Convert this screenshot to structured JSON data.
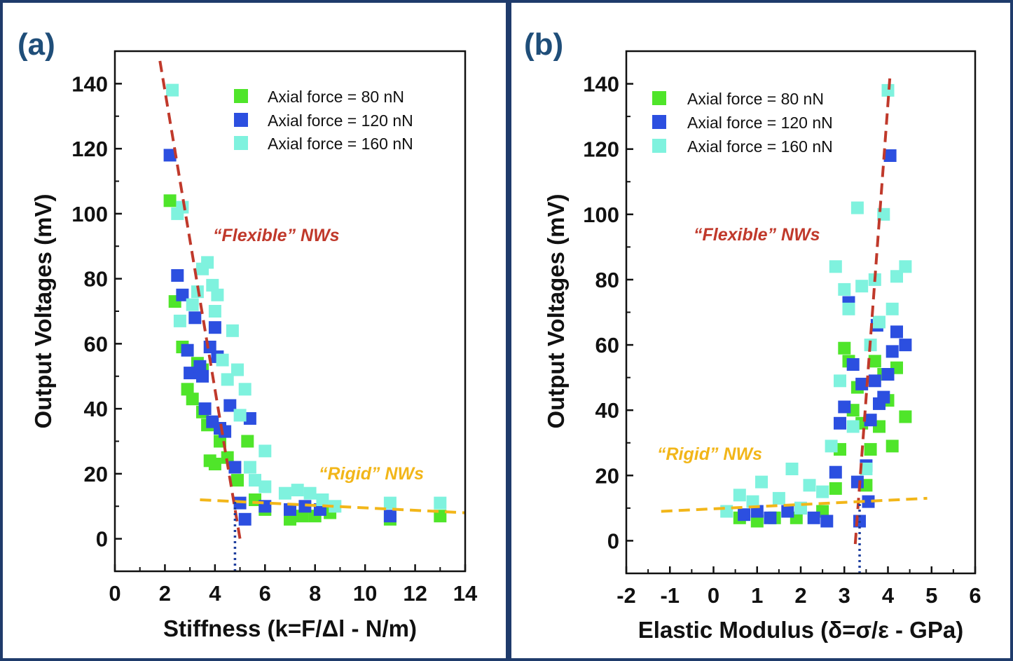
{
  "chart_data": [
    {
      "type": "scatter",
      "panel_label": "(a)",
      "xlabel": "Stiffness (k=F/Δl - N/m)",
      "ylabel": "Output Voltages (mV)",
      "xlim": [
        0,
        14
      ],
      "ylim": [
        -10,
        150
      ],
      "xticks": [
        "0",
        "2",
        "4",
        "6",
        "8",
        "10",
        "12",
        "14"
      ],
      "yticks": [
        "0",
        "20",
        "40",
        "60",
        "80",
        "100",
        "120",
        "140"
      ],
      "legend_position": "top-right",
      "grid": false,
      "series": [
        {
          "name": "Axial force = 80 nN",
          "color": "#4fe52a",
          "points": [
            [
              2.2,
              104
            ],
            [
              2.4,
              73
            ],
            [
              2.7,
              59
            ],
            [
              2.9,
              46
            ],
            [
              3.1,
              43
            ],
            [
              3.3,
              54
            ],
            [
              3.5,
              52
            ],
            [
              3.5,
              39
            ],
            [
              3.7,
              35
            ],
            [
              3.8,
              24
            ],
            [
              4.0,
              23
            ],
            [
              4.2,
              30
            ],
            [
              4.5,
              25
            ],
            [
              4.9,
              18
            ],
            [
              5.3,
              30
            ],
            [
              5.6,
              12
            ],
            [
              6.0,
              9
            ],
            [
              7.0,
              6
            ],
            [
              7.5,
              7
            ],
            [
              8.0,
              7
            ],
            [
              8.6,
              8
            ],
            [
              11.0,
              6
            ],
            [
              13.0,
              7
            ]
          ]
        },
        {
          "name": "Axial force = 120 nN",
          "color": "#2c4fe0",
          "points": [
            [
              2.2,
              118
            ],
            [
              2.5,
              81
            ],
            [
              2.7,
              75
            ],
            [
              2.9,
              58
            ],
            [
              3.0,
              51
            ],
            [
              3.2,
              68
            ],
            [
              3.4,
              53
            ],
            [
              3.5,
              50
            ],
            [
              3.6,
              40
            ],
            [
              3.8,
              59
            ],
            [
              3.9,
              36
            ],
            [
              4.0,
              65
            ],
            [
              4.1,
              56
            ],
            [
              4.2,
              34
            ],
            [
              4.4,
              33
            ],
            [
              4.6,
              41
            ],
            [
              4.8,
              22
            ],
            [
              5.0,
              11
            ],
            [
              5.2,
              6
            ],
            [
              5.4,
              37
            ],
            [
              6.0,
              10
            ],
            [
              7.0,
              9
            ],
            [
              7.6,
              10
            ],
            [
              8.2,
              9
            ],
            [
              11.0,
              7
            ]
          ]
        },
        {
          "name": "Axial force = 160 nN",
          "color": "#7ff2de",
          "points": [
            [
              2.3,
              138
            ],
            [
              2.5,
              100
            ],
            [
              2.7,
              102
            ],
            [
              2.6,
              67
            ],
            [
              3.1,
              72
            ],
            [
              3.3,
              76
            ],
            [
              3.5,
              83
            ],
            [
              3.7,
              85
            ],
            [
              3.9,
              78
            ],
            [
              4.0,
              70
            ],
            [
              4.1,
              75
            ],
            [
              4.3,
              55
            ],
            [
              4.5,
              49
            ],
            [
              4.7,
              64
            ],
            [
              4.9,
              52
            ],
            [
              5.0,
              38
            ],
            [
              5.2,
              46
            ],
            [
              5.4,
              22
            ],
            [
              5.6,
              18
            ],
            [
              6.0,
              27
            ],
            [
              6.0,
              16
            ],
            [
              6.8,
              14
            ],
            [
              7.3,
              15
            ],
            [
              7.8,
              14
            ],
            [
              8.3,
              12
            ],
            [
              8.8,
              10
            ],
            [
              11.0,
              11
            ],
            [
              13.0,
              11
            ]
          ]
        }
      ],
      "fit_lines": [
        {
          "label": "“Flexible” NWs",
          "color": "#c0392b",
          "from": [
            1.8,
            147
          ],
          "to": [
            5.0,
            0
          ]
        },
        {
          "label": "“Rigid” NWs",
          "color": "#f2b619",
          "from": [
            3.4,
            12
          ],
          "to": [
            14.0,
            8
          ]
        }
      ],
      "threshold": {
        "x": 4.8,
        "color": "#1f3f9e"
      }
    },
    {
      "type": "scatter",
      "panel_label": "(b)",
      "xlabel": "Elastic Modulus (δ=σ/ε - GPa)",
      "ylabel": "Output Voltages (mV)",
      "xlim": [
        -2,
        6
      ],
      "ylim": [
        -10,
        150
      ],
      "xticks": [
        "-2",
        "-1",
        "0",
        "1",
        "2",
        "3",
        "4",
        "5",
        "6"
      ],
      "yticks": [
        "0",
        "20",
        "40",
        "60",
        "80",
        "100",
        "120",
        "140"
      ],
      "legend_position": "top-left",
      "grid": false,
      "series": [
        {
          "name": "Axial force = 80 nN",
          "color": "#4fe52a",
          "points": [
            [
              0.6,
              7
            ],
            [
              1.0,
              6
            ],
            [
              1.4,
              7
            ],
            [
              1.9,
              7
            ],
            [
              2.5,
              9
            ],
            [
              2.8,
              16
            ],
            [
              2.9,
              28
            ],
            [
              3.0,
              59
            ],
            [
              3.1,
              55
            ],
            [
              3.2,
              40
            ],
            [
              3.3,
              47
            ],
            [
              3.4,
              36
            ],
            [
              3.5,
              17
            ],
            [
              3.6,
              28
            ],
            [
              3.7,
              55
            ],
            [
              3.8,
              35
            ],
            [
              3.9,
              51
            ],
            [
              4.0,
              43
            ],
            [
              4.1,
              29
            ],
            [
              4.2,
              53
            ],
            [
              4.4,
              38
            ]
          ]
        },
        {
          "name": "Axial force = 120 nN",
          "color": "#2c4fe0",
          "points": [
            [
              0.7,
              8
            ],
            [
              1.0,
              9
            ],
            [
              1.3,
              7
            ],
            [
              1.7,
              9
            ],
            [
              2.0,
              10
            ],
            [
              2.3,
              7
            ],
            [
              2.6,
              6
            ],
            [
              2.8,
              21
            ],
            [
              2.9,
              36
            ],
            [
              3.0,
              41
            ],
            [
              3.1,
              73
            ],
            [
              3.2,
              54
            ],
            [
              3.3,
              18
            ],
            [
              3.35,
              6
            ],
            [
              3.4,
              48
            ],
            [
              3.5,
              23
            ],
            [
              3.55,
              12
            ],
            [
              3.6,
              37
            ],
            [
              3.7,
              49
            ],
            [
              3.75,
              66
            ],
            [
              3.8,
              42
            ],
            [
              3.9,
              44
            ],
            [
              4.0,
              51
            ],
            [
              4.05,
              118
            ],
            [
              4.1,
              58
            ],
            [
              4.2,
              64
            ],
            [
              4.4,
              60
            ]
          ]
        },
        {
          "name": "Axial force = 160 nN",
          "color": "#7ff2de",
          "points": [
            [
              0.3,
              9
            ],
            [
              0.6,
              14
            ],
            [
              0.9,
              12
            ],
            [
              1.1,
              18
            ],
            [
              1.5,
              13
            ],
            [
              1.8,
              22
            ],
            [
              2.0,
              10
            ],
            [
              2.2,
              17
            ],
            [
              2.5,
              15
            ],
            [
              2.7,
              29
            ],
            [
              2.8,
              84
            ],
            [
              2.9,
              49
            ],
            [
              3.0,
              77
            ],
            [
              3.1,
              71
            ],
            [
              3.2,
              35
            ],
            [
              3.3,
              102
            ],
            [
              3.4,
              78
            ],
            [
              3.5,
              22
            ],
            [
              3.6,
              60
            ],
            [
              3.7,
              80
            ],
            [
              3.8,
              67
            ],
            [
              3.9,
              100
            ],
            [
              4.0,
              138
            ],
            [
              4.1,
              71
            ],
            [
              4.2,
              81
            ],
            [
              4.4,
              84
            ]
          ]
        }
      ],
      "fit_lines": [
        {
          "label": "“Flexible” NWs",
          "color": "#c0392b",
          "from": [
            3.25,
            -1
          ],
          "to": [
            4.05,
            143
          ]
        },
        {
          "label": "“Rigid” NWs",
          "color": "#f2b619",
          "from": [
            -1.2,
            9
          ],
          "to": [
            4.9,
            13
          ]
        }
      ],
      "threshold": {
        "x": 3.35,
        "color": "#1f3f9e"
      }
    }
  ]
}
